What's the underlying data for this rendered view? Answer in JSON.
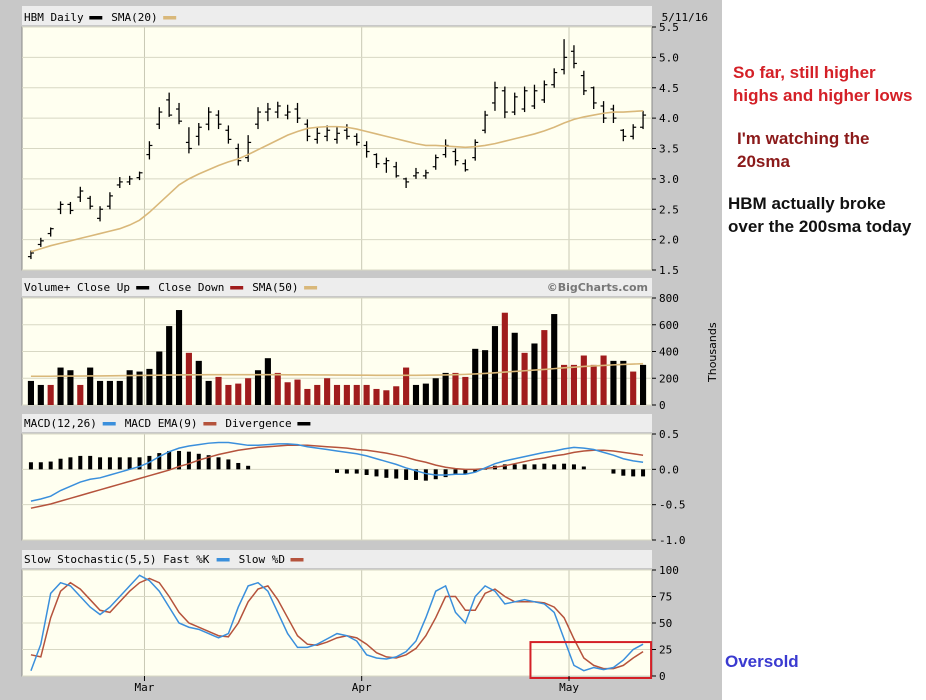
{
  "notes": {
    "higher_highs": "So far, still higher highs and higher lows",
    "watching": "I'm watching the 20sma",
    "broke_200": "HBM actually broke over the 200sma today",
    "oversold": "Oversold"
  },
  "colors": {
    "panel_bg": "#fffff0",
    "frame_bg": "#c8c8c8",
    "price_bar": "#000000",
    "sma": "#d9b87a",
    "vol_up": "#000000",
    "vol_down": "#a01c1c",
    "macd": "#3a8fdc",
    "macd_ema": "#b5533c",
    "stoch_fast": "#3a8fdc",
    "stoch_slow": "#b5533c",
    "highlight_box": "#d42027",
    "note_red": "#d42027",
    "note_darkred": "#8b1a1a",
    "note_black": "#111111",
    "note_blue": "#3a3ad0"
  },
  "chart_data": [
    {
      "type": "ohlc",
      "title": "HBM Daily",
      "date": "5/11/16",
      "legend": [
        "HBM Daily",
        "SMA(20)"
      ],
      "ylim": [
        1.5,
        5.5
      ],
      "yticks": [
        "5.5",
        "5.0",
        "4.5",
        "4.0",
        "3.5",
        "3.0",
        "2.5",
        "2.0",
        "1.5"
      ],
      "ytick_values": [
        5.5,
        5.0,
        4.5,
        4.0,
        3.5,
        3.0,
        2.5,
        2.0,
        1.5
      ],
      "high": [
        1.82,
        2.03,
        2.2,
        2.63,
        2.62,
        2.87,
        2.72,
        2.55,
        2.78,
        3.03,
        3.05,
        3.12,
        3.62,
        4.18,
        4.42,
        4.25,
        3.85,
        3.92,
        4.18,
        4.13,
        3.88,
        3.58,
        3.72,
        4.18,
        4.25,
        4.27,
        4.22,
        4.25,
        3.98,
        3.85,
        3.88,
        3.85,
        3.9,
        3.75,
        3.62,
        3.42,
        3.35,
        3.28,
        3.02,
        3.18,
        3.15,
        3.4,
        3.65,
        3.5,
        3.32,
        3.65,
        4.12,
        4.6,
        4.52,
        4.42,
        4.52,
        4.55,
        4.62,
        4.82,
        5.3,
        5.2,
        4.78,
        4.52,
        4.28,
        4.22,
        3.82,
        3.9,
        4.12
      ],
      "low": [
        1.68,
        1.88,
        2.05,
        2.42,
        2.42,
        2.62,
        2.5,
        2.3,
        2.5,
        2.85,
        2.9,
        2.98,
        3.32,
        3.82,
        4.02,
        3.9,
        3.42,
        3.55,
        3.8,
        3.82,
        3.58,
        3.22,
        3.28,
        3.82,
        3.95,
        4.0,
        3.98,
        3.92,
        3.62,
        3.58,
        3.62,
        3.58,
        3.65,
        3.55,
        3.35,
        3.18,
        3.1,
        3.02,
        2.85,
        3.0,
        3.0,
        3.15,
        3.35,
        3.22,
        3.12,
        3.3,
        3.75,
        4.12,
        4.0,
        4.05,
        4.1,
        4.15,
        4.25,
        4.5,
        4.72,
        4.82,
        4.38,
        4.15,
        3.92,
        3.92,
        3.62,
        3.65,
        3.82
      ],
      "open": [
        1.72,
        1.92,
        2.1,
        2.5,
        2.58,
        2.7,
        2.68,
        2.35,
        2.55,
        2.9,
        2.95,
        3.02,
        3.4,
        3.9,
        4.3,
        4.15,
        3.6,
        3.7,
        3.9,
        4.05,
        3.8,
        3.5,
        3.35,
        3.9,
        4.1,
        4.1,
        4.05,
        4.15,
        3.9,
        3.65,
        3.7,
        3.65,
        3.8,
        3.7,
        3.55,
        3.4,
        3.25,
        3.2,
        3.0,
        3.05,
        3.05,
        3.2,
        3.4,
        3.45,
        3.25,
        3.35,
        3.8,
        4.25,
        4.45,
        4.1,
        4.15,
        4.2,
        4.3,
        4.55,
        4.8,
        5.1,
        4.7,
        4.5,
        4.2,
        4.15,
        3.8,
        3.7,
        3.85
      ],
      "close": [
        1.78,
        1.98,
        2.18,
        2.58,
        2.48,
        2.8,
        2.55,
        2.5,
        2.72,
        2.95,
        3.0,
        3.1,
        3.55,
        4.1,
        4.05,
        3.95,
        3.5,
        3.85,
        4.1,
        3.9,
        3.65,
        3.3,
        3.6,
        4.1,
        4.15,
        4.2,
        4.1,
        4.0,
        3.7,
        3.75,
        3.8,
        3.75,
        3.7,
        3.6,
        3.45,
        3.25,
        3.3,
        3.05,
        2.95,
        3.1,
        3.1,
        3.35,
        3.55,
        3.3,
        3.15,
        3.6,
        4.05,
        4.5,
        4.1,
        4.35,
        4.45,
        4.45,
        4.55,
        4.75,
        5.0,
        4.9,
        4.45,
        4.25,
        4.0,
        4.0,
        3.7,
        3.85,
        4.05
      ],
      "sma20": [
        1.8,
        1.85,
        1.9,
        1.94,
        1.98,
        2.02,
        2.06,
        2.1,
        2.14,
        2.18,
        2.24,
        2.32,
        2.45,
        2.6,
        2.75,
        2.9,
        3.0,
        3.08,
        3.15,
        3.22,
        3.28,
        3.33,
        3.4,
        3.48,
        3.56,
        3.64,
        3.72,
        3.78,
        3.83,
        3.85,
        3.86,
        3.86,
        3.85,
        3.82,
        3.78,
        3.74,
        3.7,
        3.66,
        3.62,
        3.58,
        3.55,
        3.55,
        3.54,
        3.53,
        3.52,
        3.53,
        3.55,
        3.58,
        3.62,
        3.66,
        3.7,
        3.74,
        3.79,
        3.85,
        3.92,
        3.98,
        4.02,
        4.05,
        4.08,
        4.1,
        4.1,
        4.11,
        4.12
      ]
    },
    {
      "type": "bar",
      "title": "Volume+",
      "legend": [
        "Volume+ Close Up",
        "Close Down",
        "SMA(50)"
      ],
      "watermark": "©BigCharts.com",
      "ylabel": "Thousands",
      "ylim": [
        0,
        800
      ],
      "yticks": [
        "800",
        "600",
        "400",
        "200",
        "0"
      ],
      "ytick_values": [
        800,
        600,
        400,
        200,
        0
      ],
      "values": [
        180,
        150,
        150,
        280,
        260,
        150,
        280,
        180,
        180,
        180,
        260,
        250,
        270,
        400,
        590,
        710,
        390,
        330,
        180,
        210,
        150,
        160,
        200,
        260,
        350,
        240,
        170,
        190,
        120,
        150,
        200,
        150,
        150,
        150,
        150,
        120,
        110,
        140,
        280,
        150,
        160,
        200,
        240,
        240,
        210,
        420,
        410,
        590,
        690,
        540,
        390,
        460,
        560,
        680,
        300,
        300,
        370,
        300,
        370,
        330,
        330,
        250,
        300
      ],
      "up": [
        true,
        true,
        false,
        true,
        true,
        false,
        true,
        true,
        true,
        true,
        true,
        true,
        true,
        true,
        true,
        true,
        false,
        true,
        true,
        false,
        false,
        false,
        false,
        true,
        true,
        false,
        false,
        false,
        false,
        false,
        false,
        false,
        false,
        false,
        false,
        false,
        false,
        false,
        false,
        true,
        true,
        true,
        true,
        false,
        false,
        true,
        true,
        true,
        false,
        true,
        false,
        true,
        false,
        true,
        false,
        false,
        false,
        false,
        false,
        true,
        true,
        false,
        true
      ],
      "sma50": [
        215,
        215,
        215,
        216,
        216,
        216,
        217,
        217,
        218,
        219,
        220,
        221,
        222,
        223,
        224,
        225,
        226,
        226,
        227,
        227,
        227,
        227,
        227,
        227,
        227,
        227,
        226,
        226,
        226,
        225,
        225,
        224,
        224,
        223,
        223,
        222,
        222,
        222,
        222,
        222,
        223,
        224,
        225,
        227,
        229,
        232,
        236,
        241,
        246,
        251,
        256,
        261,
        266,
        272,
        278,
        283,
        288,
        292,
        296,
        300,
        303,
        306,
        309
      ]
    },
    {
      "type": "line",
      "title": "MACD(12,26)",
      "legend": [
        "MACD(12,26)",
        "MACD EMA(9)",
        "Divergence"
      ],
      "ylim": [
        -1.0,
        0.5
      ],
      "yticks": [
        "0.5",
        "0.0",
        "-0.5",
        "-1.0"
      ],
      "ytick_values": [
        0.5,
        0.0,
        -0.5,
        -1.0
      ],
      "macd": [
        -0.45,
        -0.42,
        -0.38,
        -0.3,
        -0.24,
        -0.18,
        -0.14,
        -0.12,
        -0.08,
        -0.04,
        0.0,
        0.04,
        0.1,
        0.18,
        0.25,
        0.3,
        0.33,
        0.35,
        0.37,
        0.38,
        0.38,
        0.36,
        0.34,
        0.34,
        0.35,
        0.36,
        0.36,
        0.35,
        0.32,
        0.3,
        0.28,
        0.26,
        0.24,
        0.22,
        0.19,
        0.15,
        0.11,
        0.07,
        0.02,
        -0.02,
        -0.06,
        -0.08,
        -0.08,
        -0.07,
        -0.07,
        -0.04,
        0.02,
        0.08,
        0.12,
        0.15,
        0.18,
        0.21,
        0.24,
        0.26,
        0.29,
        0.31,
        0.3,
        0.28,
        0.24,
        0.2,
        0.15,
        0.12,
        0.1
      ],
      "ema": [
        -0.55,
        -0.52,
        -0.49,
        -0.45,
        -0.41,
        -0.37,
        -0.33,
        -0.29,
        -0.25,
        -0.21,
        -0.17,
        -0.13,
        -0.09,
        -0.05,
        -0.01,
        0.04,
        0.08,
        0.13,
        0.17,
        0.21,
        0.24,
        0.27,
        0.29,
        0.31,
        0.32,
        0.33,
        0.34,
        0.34,
        0.34,
        0.33,
        0.32,
        0.31,
        0.3,
        0.28,
        0.27,
        0.25,
        0.23,
        0.2,
        0.17,
        0.13,
        0.1,
        0.06,
        0.03,
        0.01,
        0.0,
        0.0,
        0.01,
        0.03,
        0.05,
        0.08,
        0.11,
        0.14,
        0.16,
        0.19,
        0.21,
        0.24,
        0.26,
        0.27,
        0.27,
        0.26,
        0.24,
        0.22,
        0.2
      ],
      "divergence": [
        0.1,
        0.1,
        0.11,
        0.15,
        0.17,
        0.19,
        0.19,
        0.17,
        0.17,
        0.17,
        0.17,
        0.17,
        0.19,
        0.23,
        0.26,
        0.26,
        0.25,
        0.22,
        0.2,
        0.17,
        0.14,
        0.09,
        0.05,
        0,
        0,
        0,
        0,
        0,
        0,
        0,
        0,
        -0.05,
        -0.06,
        -0.06,
        -0.08,
        -0.1,
        -0.12,
        -0.13,
        -0.15,
        -0.15,
        -0.16,
        -0.14,
        -0.11,
        -0.08,
        -0.07,
        -0.04,
        0.01,
        0.05,
        0.07,
        0.07,
        0.07,
        0.07,
        0.08,
        0.07,
        0.08,
        0.07,
        0.04,
        0,
        0,
        -0.06,
        -0.09,
        -0.1,
        -0.1
      ]
    },
    {
      "type": "line",
      "title": "Slow Stochastic(5,5)",
      "legend": [
        "Slow Stochastic(5,5)",
        "Fast %K",
        "Slow %D"
      ],
      "ylim": [
        0,
        100
      ],
      "yticks": [
        "100",
        "75",
        "50",
        "25",
        "0"
      ],
      "ytick_values": [
        100,
        75,
        50,
        25,
        0
      ],
      "fast_k": [
        5,
        30,
        78,
        88,
        85,
        75,
        65,
        58,
        65,
        75,
        85,
        95,
        90,
        80,
        65,
        50,
        46,
        44,
        40,
        36,
        40,
        65,
        85,
        88,
        80,
        60,
        40,
        27,
        27,
        30,
        35,
        40,
        38,
        33,
        20,
        17,
        16,
        18,
        23,
        33,
        55,
        80,
        85,
        60,
        50,
        75,
        85,
        80,
        68,
        70,
        72,
        70,
        68,
        60,
        35,
        10,
        5,
        8,
        6,
        8,
        15,
        25,
        30
      ],
      "slow_d": [
        20,
        18,
        55,
        80,
        88,
        82,
        72,
        62,
        60,
        70,
        80,
        88,
        92,
        88,
        75,
        60,
        50,
        46,
        42,
        38,
        37,
        50,
        70,
        82,
        85,
        72,
        55,
        38,
        30,
        29,
        32,
        36,
        38,
        36,
        30,
        22,
        18,
        17,
        20,
        26,
        38,
        55,
        75,
        75,
        62,
        62,
        78,
        82,
        75,
        70,
        70,
        70,
        69,
        65,
        55,
        35,
        17,
        10,
        7,
        7,
        10,
        17,
        23
      ],
      "annotations": [
        "Oversold"
      ]
    }
  ],
  "x_axis": {
    "labels": [
      "Mar",
      "Apr",
      "May"
    ],
    "label_index": [
      11.5,
      33.5,
      54.5
    ]
  }
}
